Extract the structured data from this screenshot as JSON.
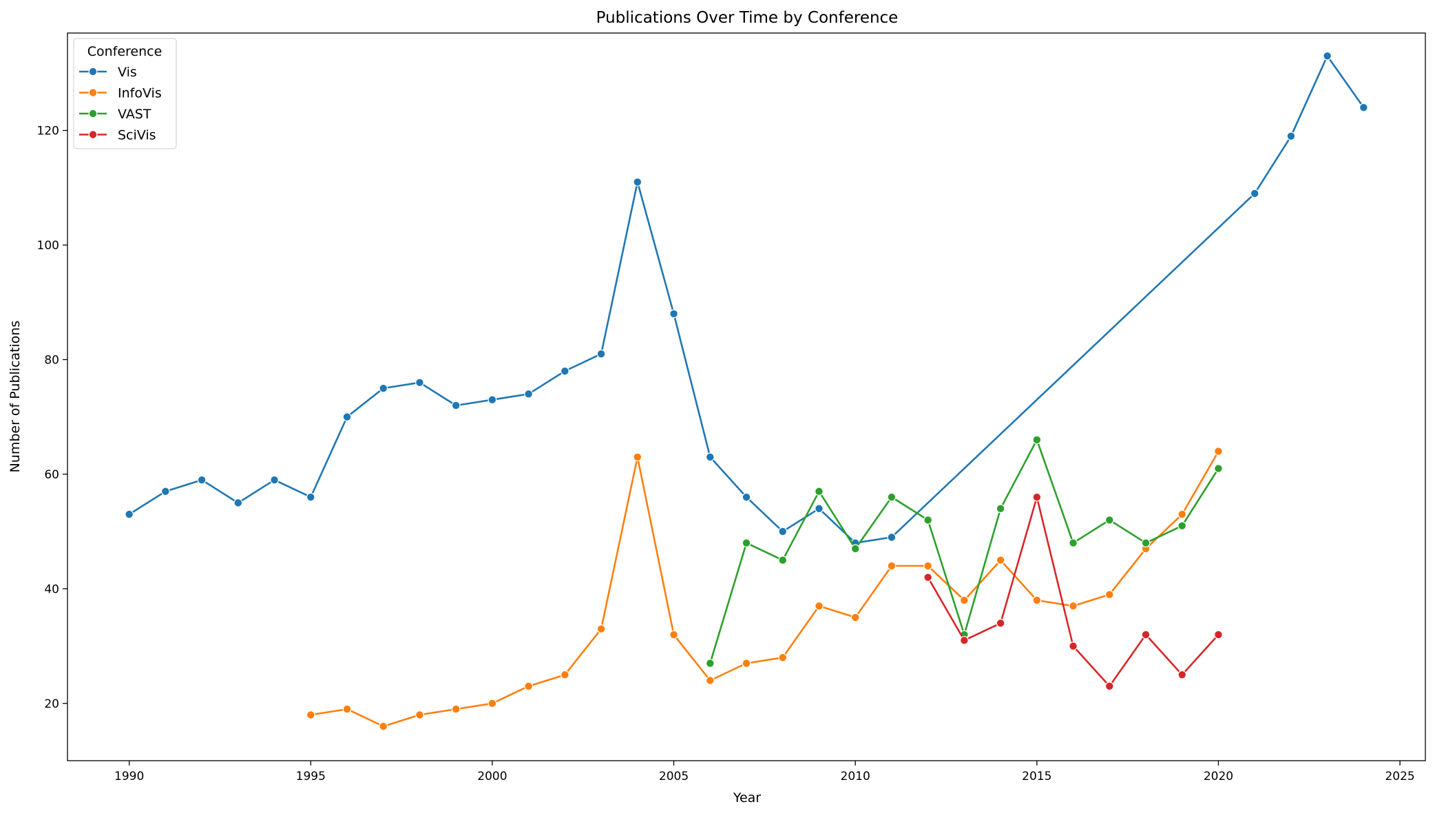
{
  "chart_data": {
    "type": "line",
    "title": "Publications Over Time by Conference",
    "xlabel": "Year",
    "ylabel": "Number of Publications",
    "xlim": [
      1988.3,
      2025.7
    ],
    "ylim": [
      10,
      137
    ],
    "xticks": [
      1990,
      1995,
      2000,
      2005,
      2010,
      2015,
      2020,
      2025
    ],
    "yticks": [
      20,
      40,
      60,
      80,
      100,
      120
    ],
    "grid": false,
    "legend": {
      "title": "Conference",
      "placement": "top-left"
    },
    "series": [
      {
        "name": "Vis",
        "color": "#1f77b4",
        "x": [
          1990,
          1991,
          1992,
          1993,
          1994,
          1995,
          1996,
          1997,
          1998,
          1999,
          2000,
          2001,
          2002,
          2003,
          2004,
          2005,
          2006,
          2007,
          2008,
          2009,
          2010,
          2011,
          2021,
          2022,
          2023,
          2024
        ],
        "y": [
          53,
          57,
          59,
          55,
          59,
          56,
          70,
          75,
          76,
          72,
          73,
          74,
          78,
          81,
          111,
          88,
          63,
          56,
          50,
          54,
          48,
          49,
          109,
          119,
          133,
          124
        ]
      },
      {
        "name": "InfoVis",
        "color": "#ff7f0e",
        "x": [
          1995,
          1996,
          1997,
          1998,
          1999,
          2000,
          2001,
          2002,
          2003,
          2004,
          2005,
          2006,
          2007,
          2008,
          2009,
          2010,
          2011,
          2012,
          2013,
          2014,
          2015,
          2016,
          2017,
          2018,
          2019,
          2020
        ],
        "y": [
          18,
          19,
          16,
          18,
          19,
          20,
          23,
          25,
          33,
          63,
          32,
          24,
          27,
          28,
          37,
          35,
          44,
          44,
          38,
          45,
          38,
          37,
          39,
          47,
          53,
          64
        ]
      },
      {
        "name": "VAST",
        "color": "#2ca02c",
        "x": [
          2006,
          2007,
          2008,
          2009,
          2010,
          2011,
          2012,
          2013,
          2014,
          2015,
          2016,
          2017,
          2018,
          2019,
          2020
        ],
        "y": [
          27,
          48,
          45,
          57,
          47,
          56,
          52,
          32,
          54,
          66,
          48,
          52,
          48,
          51,
          61
        ]
      },
      {
        "name": "SciVis",
        "color": "#d62728",
        "x": [
          2012,
          2013,
          2014,
          2015,
          2016,
          2017,
          2018,
          2019,
          2020
        ],
        "y": [
          42,
          31,
          34,
          56,
          30,
          23,
          32,
          25,
          32
        ]
      }
    ]
  }
}
